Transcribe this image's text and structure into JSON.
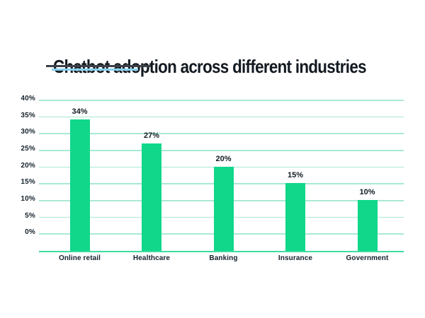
{
  "chart_data": {
    "type": "bar",
    "title": "Chatbot adoption across different industries",
    "categories": [
      "Online retail",
      "Healthcare",
      "Banking",
      "Insurance",
      "Government"
    ],
    "values": [
      34,
      27,
      20,
      15,
      10
    ],
    "value_labels": [
      "34%",
      "27%",
      "20%",
      "15%",
      "10%"
    ],
    "yticks": [
      "40%",
      "35%",
      "30%",
      "25%",
      "20%",
      "15%",
      "10%",
      "5%",
      "0%"
    ],
    "ytick_values": [
      40,
      35,
      30,
      25,
      20,
      15,
      10,
      5,
      0
    ],
    "ylim": [
      0,
      40
    ],
    "xlabel": "",
    "ylabel": "",
    "grid": "horizontal",
    "legend": "none",
    "colors": {
      "background": "#ffffff",
      "bar": "#10d78a",
      "gridline": "#a9e9d3",
      "axis_line": "#3edda0",
      "text": "#15222c",
      "title_text": "#121921",
      "title_underline": "#3b4147",
      "title_underline_accent": "#86d0f0"
    }
  }
}
